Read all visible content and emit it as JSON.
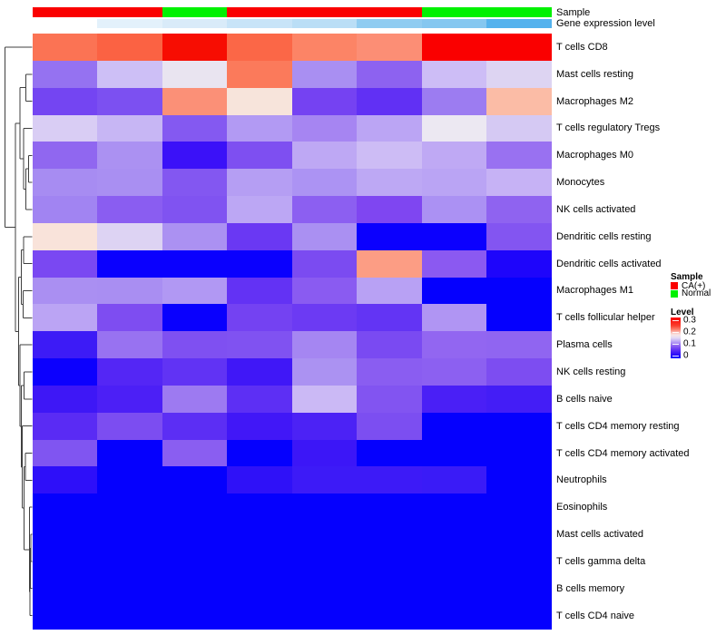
{
  "chart_data": {
    "type": "heatmap",
    "title": "",
    "n_columns": 8,
    "column_labels_shown": false,
    "column_annotations": [
      {
        "name": "Sample",
        "values": [
          "CA(+)",
          "CA(+)",
          "Normal",
          "CA(+)",
          "CA(+)",
          "CA(+)",
          "Normal",
          "Normal"
        ],
        "colors": [
          "#FA0101",
          "#FA0101",
          "#00F101",
          "#FA0101",
          "#FA0101",
          "#FA0101",
          "#00F101",
          "#00F101"
        ]
      },
      {
        "name": "Gene expression level",
        "colors": [
          "#FFFFFF",
          "#E3F1FB",
          "#D9EBF9",
          "#C8E4F8",
          "#BADEF6",
          "#90CCF1",
          "#85C7F0",
          "#54B2ED"
        ]
      }
    ],
    "value_scale": {
      "min": 0,
      "max": 0.3,
      "low_color": "#0500FE",
      "mid_color": "#F7E8EA",
      "high_color": "#FA0000"
    },
    "rows": [
      {
        "label": "T cells CD8",
        "values": [
          0.24,
          0.25,
          0.29,
          0.245,
          0.23,
          0.22,
          0.3,
          0.3
        ],
        "colors": [
          "#FB7354",
          "#FB6243",
          "#F70D02",
          "#FB6747",
          "#FC8466",
          "#FC8E75",
          "#FA0000",
          "#FA0000"
        ]
      },
      {
        "label": "Mast cells resting",
        "values": [
          0.055,
          0.098,
          0.13,
          0.235,
          0.069,
          0.049,
          0.1,
          0.115
        ],
        "colors": [
          "#9572F1",
          "#CDBFF6",
          "#E9E4F0",
          "#FB7A5B",
          "#A98FF2",
          "#8D62F0",
          "#CDBDF6",
          "#DDD4F2"
        ]
      },
      {
        "label": "Macrophages M2",
        "values": [
          0.036,
          0.04,
          0.215,
          0.165,
          0.036,
          0.029,
          0.06,
          0.19
        ],
        "colors": [
          "#7445F2",
          "#7C50F1",
          "#FB9077",
          "#F7E4DB",
          "#7542F2",
          "#6130F4",
          "#9C7CF1",
          "#FBBCA6"
        ]
      },
      {
        "label": "T cells regulatory  Tregs",
        "values": [
          0.11,
          0.095,
          0.045,
          0.077,
          0.066,
          0.084,
          0.13,
          0.11
        ],
        "colors": [
          "#D9CDF4",
          "#C7B6F4",
          "#8459F1",
          "#B29AF3",
          "#A685F2",
          "#BBA5F4",
          "#ECE8F2",
          "#D5C9F3"
        ]
      },
      {
        "label": "Macrophages M0",
        "values": [
          0.052,
          0.071,
          0.015,
          0.041,
          0.086,
          0.1,
          0.087,
          0.056
        ],
        "colors": [
          "#9067F0",
          "#AB91F2",
          "#3B11F8",
          "#7E4FF1",
          "#BEA8F4",
          "#CDBCF5",
          "#BFA9F4",
          "#9971F1"
        ]
      },
      {
        "label": "Monocytes",
        "values": [
          0.068,
          0.069,
          0.044,
          0.079,
          0.072,
          0.086,
          0.083,
          0.093
        ],
        "colors": [
          "#A78CF2",
          "#A98FF2",
          "#8357F1",
          "#B59EF3",
          "#AC93F3",
          "#BDA8F4",
          "#BAA4F4",
          "#C6B2F5"
        ]
      },
      {
        "label": "NK cells activated",
        "values": [
          0.064,
          0.047,
          0.042,
          0.085,
          0.048,
          0.041,
          0.071,
          0.05
        ],
        "colors": [
          "#A184F2",
          "#8A5DF1",
          "#8053F1",
          "#BCA7F4",
          "#8C5FF1",
          "#7F46F1",
          "#AB91F3",
          "#8F63F0"
        ]
      },
      {
        "label": "Dendritic cells resting",
        "values": [
          0.165,
          0.115,
          0.071,
          0.031,
          0.07,
          0.002,
          0.002,
          0.044
        ],
        "colors": [
          "#F9E3DA",
          "#DDD3F3",
          "#AB91F2",
          "#6A38F3",
          "#AA90F2",
          "#0B00FE",
          "#0B00FE",
          "#8355F1"
        ]
      },
      {
        "label": "Dendritic cells activated",
        "values": [
          0.038,
          0.002,
          0.002,
          0.002,
          0.038,
          0.21,
          0.046,
          0.007
        ],
        "colors": [
          "#7A48F2",
          "#0A00FE",
          "#0A00FE",
          "#0A00FE",
          "#7B4BF1",
          "#FC9D84",
          "#8B59F1",
          "#1E05FB"
        ]
      },
      {
        "label": "Macrophages M1",
        "values": [
          0.07,
          0.069,
          0.076,
          0.029,
          0.047,
          0.08,
          0,
          0
        ],
        "colors": [
          "#AA8FF2",
          "#A98EF2",
          "#B198F3",
          "#6332F4",
          "#8A5BF1",
          "#B8A1F4",
          "#0500FE",
          "#0500FE"
        ]
      },
      {
        "label": "T cells follicular helper",
        "values": [
          0.084,
          0.04,
          0.002,
          0.036,
          0.032,
          0.03,
          0.074,
          0
        ],
        "colors": [
          "#BBA4F4",
          "#7E4DF1",
          "#0900FE",
          "#7442F2",
          "#6C3AF3",
          "#6334F4",
          "#B095F3",
          "#0500FE"
        ]
      },
      {
        "label": "Plasma cells",
        "values": [
          0.016,
          0.056,
          0.041,
          0.042,
          0.065,
          0.038,
          0.055,
          0.053
        ],
        "colors": [
          "#3D1BF6",
          "#9872F1",
          "#7F50F1",
          "#8052F1",
          "#A586F2",
          "#7A4AF2",
          "#9266F1",
          "#9065F1"
        ]
      },
      {
        "label": "NK cells resting",
        "values": [
          0.002,
          0.024,
          0.029,
          0.017,
          0.071,
          0.047,
          0.048,
          0.04
        ],
        "colors": [
          "#0C00FE",
          "#5426F5",
          "#6133F4",
          "#4017F7",
          "#AB92F2",
          "#8A5DF1",
          "#8C60F1",
          "#7D4DF1"
        ]
      },
      {
        "label": "B cells naive",
        "values": [
          0.016,
          0.021,
          0.06,
          0.027,
          0.098,
          0.043,
          0.02,
          0.018
        ],
        "colors": [
          "#3E17F6",
          "#4C1FF6",
          "#9D7AF1",
          "#5D2FF4",
          "#CBB9F5",
          "#8254F1",
          "#4A1FF6",
          "#441DF6"
        ]
      },
      {
        "label": "T cells CD4 memory resting",
        "values": [
          0.026,
          0.04,
          0.027,
          0.017,
          0.021,
          0.04,
          0,
          0
        ],
        "colors": [
          "#5A2BF4",
          "#7C4DF1",
          "#5C2EF4",
          "#4117F7",
          "#4C22F5",
          "#7C4EF1",
          "#0500FE",
          "#0500FE"
        ]
      },
      {
        "label": "T cells CD4 memory activated",
        "values": [
          0.042,
          0,
          0.047,
          0,
          0.015,
          0,
          0,
          0
        ],
        "colors": [
          "#8055F1",
          "#0500FE",
          "#8A5EF1",
          "#0500FE",
          "#3C16F7",
          "#0500FE",
          "#0500FE",
          "#0500FE"
        ]
      },
      {
        "label": "Neutrophils",
        "values": [
          0.012,
          0,
          0,
          0.012,
          0.015,
          0.015,
          0.014,
          0
        ],
        "colors": [
          "#2E0FF9",
          "#0500FE",
          "#0500FE",
          "#2F11F8",
          "#3D1AF7",
          "#3D1AF7",
          "#3A1BF7",
          "#0500FE"
        ]
      },
      {
        "label": "Eosinophils",
        "values": [
          0,
          0,
          0,
          0,
          0,
          0,
          0,
          0
        ],
        "colors": [
          "#0500FE",
          "#0500FE",
          "#0500FE",
          "#0500FE",
          "#0500FE",
          "#0500FE",
          "#0500FE",
          "#0500FE"
        ]
      },
      {
        "label": "Mast cells activated",
        "values": [
          0,
          0,
          0,
          0,
          0,
          0,
          0,
          0
        ],
        "colors": [
          "#0500FE",
          "#0500FE",
          "#0500FE",
          "#0500FE",
          "#0500FE",
          "#0500FE",
          "#0500FE",
          "#0500FE"
        ]
      },
      {
        "label": "T cells gamma delta",
        "values": [
          0,
          0,
          0,
          0,
          0,
          0,
          0,
          0
        ],
        "colors": [
          "#0500FE",
          "#0500FE",
          "#0500FE",
          "#0500FE",
          "#0500FE",
          "#0500FE",
          "#0500FE",
          "#0500FE"
        ]
      },
      {
        "label": "B cells memory",
        "values": [
          0,
          0,
          0,
          0,
          0,
          0,
          0,
          0
        ],
        "colors": [
          "#0500FE",
          "#0500FE",
          "#0500FE",
          "#0500FE",
          "#0500FE",
          "#0500FE",
          "#0500FE",
          "#0500FE"
        ]
      },
      {
        "label": "T cells CD4 naive",
        "values": [
          0,
          0,
          0,
          0,
          0,
          0,
          0,
          0
        ],
        "colors": [
          "#0500FE",
          "#0500FE",
          "#0500FE",
          "#0500FE",
          "#0500FE",
          "#0500FE",
          "#0500FE",
          "#0500FE"
        ]
      }
    ],
    "legends": [
      {
        "title": "Sample",
        "items": [
          {
            "label": "CA(+)",
            "color": "#FA0101"
          },
          {
            "label": "Normal",
            "color": "#00F101"
          }
        ]
      },
      {
        "title": "Level",
        "ticks": [
          {
            "label": "0.3",
            "t": 0.077
          },
          {
            "label": "0.2",
            "t": 0.363
          },
          {
            "label": "0.1",
            "t": 0.659
          },
          {
            "label": "0",
            "t": 0.945
          }
        ],
        "color_stops": [
          {
            "p": 0,
            "c": "#F90000"
          },
          {
            "p": 0.2,
            "c": "#FA3F2D"
          },
          {
            "p": 0.3,
            "c": "#FB8372"
          },
          {
            "p": 0.37,
            "c": "#FBC4BC"
          },
          {
            "p": 0.43,
            "c": "#F7E6E7"
          },
          {
            "p": 0.5,
            "c": "#E3DAF5"
          },
          {
            "p": 0.6,
            "c": "#B79FF4"
          },
          {
            "p": 0.7,
            "c": "#8A5DF1"
          },
          {
            "p": 0.8,
            "c": "#5E2FF4"
          },
          {
            "p": 0.9,
            "c": "#2F0EF9"
          },
          {
            "p": 1,
            "c": "#0500FE"
          }
        ]
      }
    ],
    "dendrogram": {
      "x": 5.5,
      "c": [
        {
          "leaf": 1
        },
        {
          "x": 17,
          "c": [
            {
              "x": 22,
              "c": [
                {
                  "x": 28.5,
                  "c": [
                    {
                      "leaf": 2
                    },
                    {
                      "leaf": 3
                    }
                  ]
                },
                {
                  "x": 26,
                  "c": [
                    {
                      "leaf": 4
                    },
                    {
                      "x": 28.7,
                      "c": [
                        {
                          "x": 31.5,
                          "c": [
                            {
                              "leaf": 5
                            },
                            {
                              "leaf": 6
                            }
                          ]
                        },
                        {
                          "leaf": 7
                        }
                      ]
                    }
                  ]
                }
              ]
            },
            {
              "x": 20.3,
              "c": [
                {
                  "x": 23.3,
                  "c": [
                    {
                      "x": 26.2,
                      "c": [
                        {
                          "leaf": 8
                        },
                        {
                          "leaf": 9
                        }
                      ]
                    },
                    {
                      "x": 25.4,
                      "c": [
                        {
                          "leaf": 10
                        },
                        {
                          "leaf": 11
                        }
                      ]
                    }
                  ]
                },
                {
                  "x": 21.8,
                  "c": [
                    {
                      "leaf": 12
                    },
                    {
                      "x": 23.3,
                      "c": [
                        {
                          "x": 26.7,
                          "c": [
                            {
                              "leaf": 13
                            },
                            {
                              "leaf": 14
                            }
                          ]
                        },
                        {
                          "x": 24.5,
                          "c": [
                            {
                              "leaf": 15
                            },
                            {
                              "x": 26.4,
                              "c": [
                                {
                                  "x": 28,
                                  "c": [
                                    {
                                      "leaf": 16
                                    },
                                    {
                                      "leaf": 17
                                    }
                                  ]
                                },
                                {
                                  "x": 32.4,
                                  "c": [
                                    {
                                      "leaf": 18
                                    },
                                    {
                                      "x": 33,
                                      "c": [
                                        {
                                          "x": 33.6,
                                          "c": [
                                            {
                                              "x": 34.2,
                                              "c": [
                                                {
                                                  "leaf": 19
                                                },
                                                {
                                                  "leaf": 20
                                                }
                                              ]
                                            },
                                            {
                                              "leaf": 21
                                            }
                                          ]
                                        },
                                        {
                                          "leaf": 22
                                        }
                                      ]
                                    }
                                  ]
                                }
                              ]
                            }
                          ]
                        }
                      ]
                    }
                  ]
                }
              ]
            }
          ]
        }
      ]
    }
  },
  "figure_colors": {
    "background": "#FFFFFF",
    "dendrogram_line": "#3F3F3F",
    "label_color": "#000000"
  }
}
